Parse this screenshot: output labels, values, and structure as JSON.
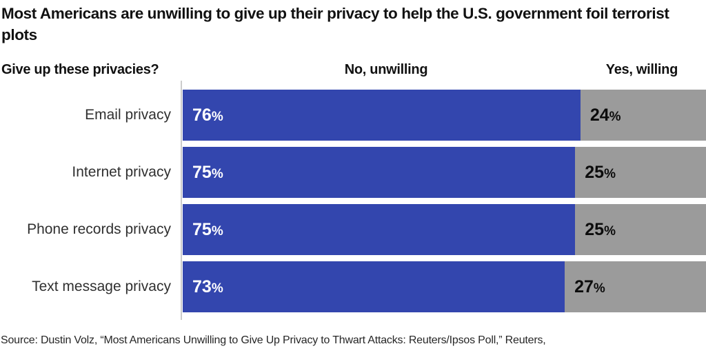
{
  "title": "Most Americans are unwilling to give up their privacy to help the U.S. government foil terrorist plots",
  "source_line": "Source: Dustin Volz, “Most Americans Unwilling to Give Up Privacy to Thwart Attacks: Reuters/Ipsos Poll,” Reuters,",
  "chart_data": {
    "type": "bar",
    "subtype": "horizontal-stacked-100-percent",
    "title": "Most Americans are unwilling to give up their privacy to help the U.S. government foil terrorist plots",
    "question_header": "Give up these privacies?",
    "percent_sign": "%",
    "xlim": [
      0,
      100
    ],
    "grid": false,
    "legend_position": "column-headers-above-bars",
    "series": [
      {
        "name": "No, unwilling",
        "color": "#3346ae",
        "values": [
          76,
          75,
          75,
          73
        ]
      },
      {
        "name": "Yes, willing",
        "color": "#9b9b9b",
        "values": [
          24,
          25,
          25,
          27
        ]
      }
    ],
    "categories": [
      "Email privacy",
      "Internet privacy",
      "Phone records privacy",
      "Text message privacy"
    ],
    "rows": [
      {
        "label": "Email privacy",
        "no": 76,
        "yes": 24
      },
      {
        "label": "Internet privacy",
        "no": 75,
        "yes": 25
      },
      {
        "label": "Phone records privacy",
        "no": 75,
        "yes": 25
      },
      {
        "label": "Text message privacy",
        "no": 73,
        "yes": 27
      }
    ],
    "colors": {
      "no_segment": "#3346ae",
      "yes_segment": "#9b9b9b",
      "axis_line": "#cccccc",
      "no_value_text": "#ffffff",
      "yes_value_text": "#0c0c0c"
    }
  }
}
